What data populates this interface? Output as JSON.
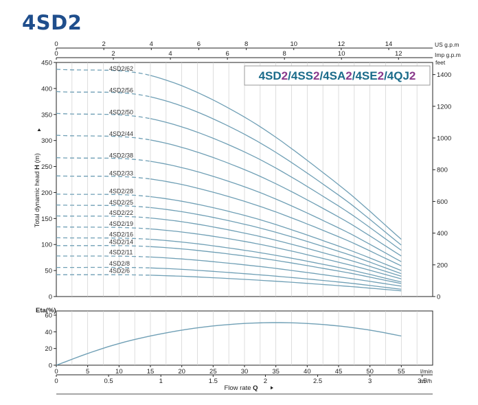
{
  "title": "4SD2",
  "chart_data": [
    {
      "type": "line",
      "model_banner": [
        "4SD",
        "2",
        "/4SS",
        "2",
        "/4SA",
        "2",
        "/4SE",
        "2",
        "/4QJ",
        "2"
      ],
      "ylabel_prefix": "Total dynamic head ",
      "ylabel_symbol": "H",
      "ylabel_unit": " (m)",
      "ylim": [
        0,
        450
      ],
      "yticks": [
        0,
        50,
        100,
        150,
        200,
        250,
        300,
        350,
        400,
        450
      ],
      "y2_unit": "feet",
      "y2ticks": [
        0,
        200,
        400,
        600,
        800,
        1000,
        1200,
        1400
      ],
      "top_axis1_unit": "US g.p.m",
      "top_axis1_ticks": [
        0,
        2,
        4,
        6,
        8,
        10,
        12,
        14
      ],
      "top_axis2_unit": "Imp g.p.m",
      "top_axis2_ticks": [
        0,
        2,
        4,
        6,
        8,
        10,
        12
      ],
      "xlim": [
        0,
        60
      ],
      "dashed_until": 15,
      "series": [
        {
          "name": "4SD2/62",
          "x": [
            0,
            15,
            30,
            45,
            55
          ],
          "values": [
            437,
            425,
            345,
            215,
            110
          ]
        },
        {
          "name": "4SD2/56",
          "x": [
            0,
            15,
            30,
            45,
            55
          ],
          "values": [
            394,
            384,
            312,
            195,
            99
          ]
        },
        {
          "name": "4SD2/50",
          "x": [
            0,
            15,
            30,
            45,
            55
          ],
          "values": [
            352,
            342,
            278,
            174,
            89
          ]
        },
        {
          "name": "4SD2/44",
          "x": [
            0,
            15,
            30,
            45,
            55
          ],
          "values": [
            310,
            301,
            244,
            153,
            78
          ]
        },
        {
          "name": "4SD2/38",
          "x": [
            0,
            15,
            30,
            45,
            55
          ],
          "values": [
            267,
            260,
            211,
            132,
            67
          ]
        },
        {
          "name": "4SD2/33",
          "x": [
            0,
            15,
            30,
            45,
            55
          ],
          "values": [
            232,
            226,
            183,
            115,
            59
          ]
        },
        {
          "name": "4SD2/28",
          "x": [
            0,
            15,
            30,
            45,
            55
          ],
          "values": [
            197,
            192,
            156,
            97,
            50
          ]
        },
        {
          "name": "4SD2/25",
          "x": [
            0,
            15,
            30,
            45,
            55
          ],
          "values": [
            176,
            171,
            139,
            87,
            44
          ]
        },
        {
          "name": "4SD2/22",
          "x": [
            0,
            15,
            30,
            45,
            55
          ],
          "values": [
            155,
            151,
            122,
            76,
            39
          ]
        },
        {
          "name": "4SD2/19",
          "x": [
            0,
            15,
            30,
            45,
            55
          ],
          "values": [
            134,
            130,
            106,
            66,
            34
          ]
        },
        {
          "name": "4SD2/16",
          "x": [
            0,
            15,
            30,
            45,
            55
          ],
          "values": [
            113,
            110,
            89,
            56,
            28
          ]
        },
        {
          "name": "4SD2/14",
          "x": [
            0,
            15,
            30,
            45,
            55
          ],
          "values": [
            98,
            96,
            78,
            49,
            25
          ]
        },
        {
          "name": "4SD2/11",
          "x": [
            0,
            15,
            30,
            45,
            55
          ],
          "values": [
            78,
            76,
            61,
            38,
            20
          ]
        },
        {
          "name": "4SD2/8",
          "x": [
            0,
            15,
            30,
            45,
            55
          ],
          "values": [
            56,
            55,
            44,
            28,
            14
          ]
        },
        {
          "name": "4SD2/6",
          "x": [
            0,
            15,
            30,
            45,
            55
          ],
          "values": [
            42,
            41,
            33,
            21,
            11
          ]
        }
      ]
    },
    {
      "type": "line",
      "ylabel": "Eta(%)",
      "ylim": [
        0,
        65
      ],
      "yticks": [
        0,
        20,
        40,
        60
      ],
      "xlim": [
        0,
        60
      ],
      "series": [
        {
          "name": "",
          "x": [
            0,
            5,
            10,
            15,
            20,
            25,
            30,
            35,
            40,
            45,
            50,
            55
          ],
          "values": [
            0,
            14,
            26,
            35,
            42,
            47,
            50,
            51,
            50,
            47,
            42,
            35
          ]
        }
      ]
    }
  ],
  "bottom_axis": {
    "x_lmin_unit": "l/min",
    "x_lmin_ticks": [
      0,
      5,
      10,
      15,
      20,
      25,
      30,
      35,
      40,
      45,
      50,
      55
    ],
    "x_m3h_unit": "m³/h",
    "x_m3h_ticks": [
      "0",
      "0.5",
      "1",
      "1.5",
      "2",
      "2.5",
      "3",
      "3.5"
    ],
    "xlabel_prefix": "Flow  rate  ",
    "xlabel_symbol": "Q"
  },
  "colors": {
    "curve": "#6f9fb5",
    "title": "#1f4e8c",
    "banner_model": "#1a6b8a",
    "banner_num": "#8a3a8c"
  }
}
